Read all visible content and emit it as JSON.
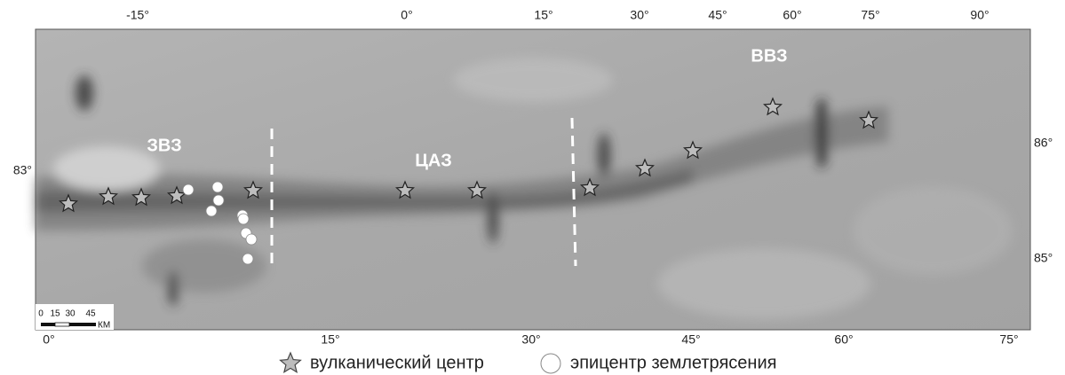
{
  "map": {
    "top_axis": [
      "-15°",
      "0°",
      "15°",
      "30°",
      "45°",
      "60°",
      "75°",
      "90°"
    ],
    "bottom_axis": [
      "0°",
      "15°",
      "30°",
      "45°",
      "60°",
      "75°"
    ],
    "left_axis": [
      "83°"
    ],
    "right_axis": [
      "86°",
      "85°"
    ],
    "zones": [
      "ЗВЗ",
      "ЦАЗ",
      "ВВЗ"
    ],
    "scale_bar": {
      "ticks": [
        "0",
        "15",
        "30",
        "45"
      ],
      "unit": "КМ"
    }
  },
  "legend": {
    "items": [
      "вулканический центр",
      "эпицентр землетрясения"
    ]
  }
}
